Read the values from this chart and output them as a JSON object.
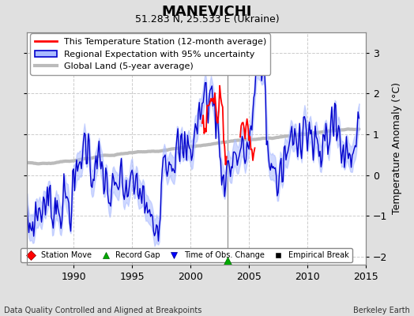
{
  "title": "MANEVICHI",
  "subtitle": "51.283 N, 25.533 E (Ukraine)",
  "xlabel_left": "Data Quality Controlled and Aligned at Breakpoints",
  "xlabel_right": "Berkeley Earth",
  "ylabel": "Temperature Anomaly (°C)",
  "xlim": [
    1986.0,
    2014.5
  ],
  "ylim": [
    -2.2,
    3.5
  ],
  "yticks": [
    -2,
    -1,
    0,
    1,
    2,
    3
  ],
  "xticks": [
    1990,
    1995,
    2000,
    2005,
    2010,
    2015
  ],
  "bg_color": "#e0e0e0",
  "plot_bg_color": "#ffffff",
  "grid_color": "#cccccc",
  "station_color": "#ff0000",
  "regional_color": "#0000cc",
  "regional_fill_color": "#aabbff",
  "global_color": "#bbbbbb",
  "record_gap_x": 2003.2,
  "record_gap_y": -2.1,
  "vline_x": 2003.2,
  "legend_fontsize": 8,
  "title_fontsize": 13,
  "subtitle_fontsize": 9,
  "tick_fontsize": 9,
  "ylabel_fontsize": 9
}
